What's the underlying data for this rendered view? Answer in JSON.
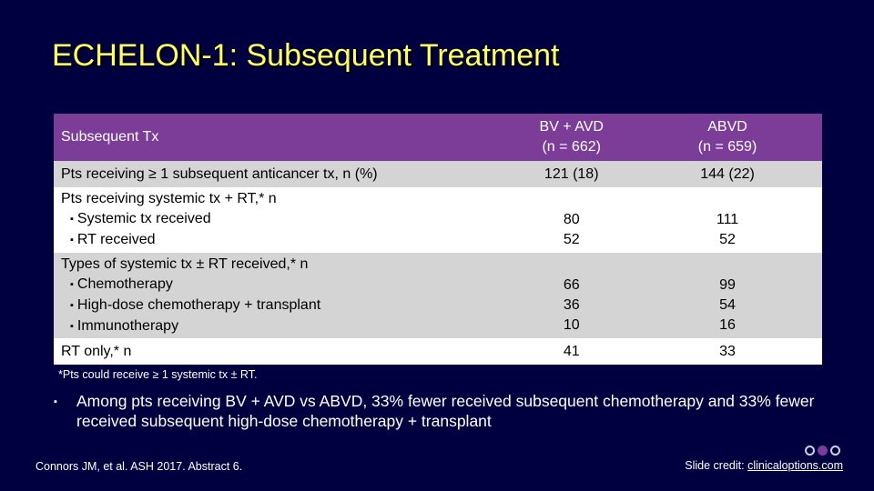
{
  "slide": {
    "title": "ECHELON-1: Subsequent Treatment"
  },
  "table": {
    "header": {
      "col1": "Subsequent Tx",
      "col2_line1": "BV + AVD",
      "col2_line2": "(n = 662)",
      "col3_line1": "ABVD",
      "col3_line2": "(n = 659)"
    },
    "rows": [
      {
        "label": "Pts receiving ≥ 1 subsequent anticancer tx, n (%)",
        "bv_avd": "121 (18)",
        "abvd": "144 (22)"
      },
      {
        "label": "Pts receiving systemic tx + RT,* n",
        "sub": [
          "Systemic tx received",
          "RT received"
        ],
        "bv_avd": [
          "80",
          "52"
        ],
        "abvd": [
          "111",
          "52"
        ]
      },
      {
        "label": "Types of systemic tx ± RT received,* n",
        "sub": [
          "Chemotherapy",
          "High-dose chemotherapy + transplant",
          "Immunotherapy"
        ],
        "bv_avd": [
          "66",
          "36",
          "10"
        ],
        "abvd": [
          "99",
          "54",
          "16"
        ]
      },
      {
        "label": "RT only,* n",
        "bv_avd": "41",
        "abvd": "33"
      }
    ],
    "bullet_glyph": "▪"
  },
  "footnote": "*Pts could receive ≥ 1 systemic tx ± RT.",
  "takeaway": "Among pts receiving BV + AVD vs ABVD, 33% fewer received subsequent chemotherapy and 33% fewer received subsequent high-dose chemotherapy + transplant",
  "citation": "Connors JM, et al. ASH 2017. Abstract 6.",
  "credit": {
    "prefix": "Slide credit:",
    "link": "clinicaloptions.com"
  },
  "colors": {
    "background": "#000040",
    "title": "#ffff66",
    "header": "#7b3d98",
    "row_gray": "#d4d4d4"
  }
}
